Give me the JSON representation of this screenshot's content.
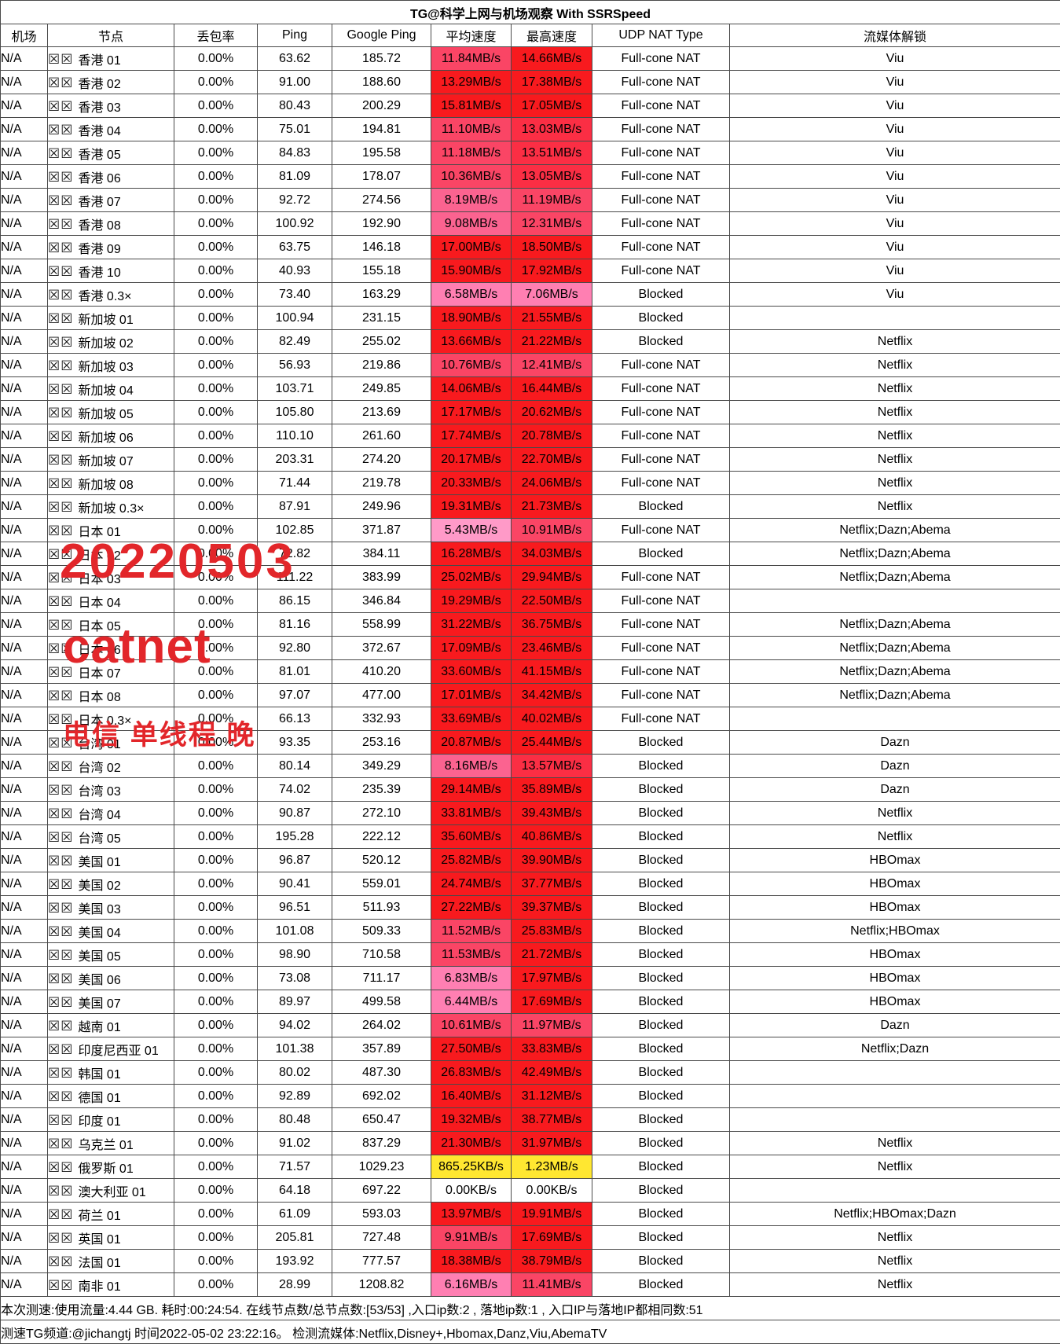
{
  "title": "TG@科学上网与机场观察 With SSRSpeed",
  "watermark": {
    "color": "#e2262a",
    "date": "20220503",
    "name": "catnet",
    "note": "电信 单线程 晚"
  },
  "footer": {
    "line1": "本次测速:使用流量:4.44 GB. 耗时:00:24:54. 在线节点数/总节点数:[53/53] ,入口ip数:2 , 落地ip数:1 , 入口IP与落地IP都相同数:51",
    "line2": "测速TG频道:@jichangtj 时间2022-05-02 23:22:16。 检测流媒体:Netflix,Disney+,Hbomax,Danz,Viu,AbemaTV"
  },
  "legend_colors": {
    "red": "#f81a1e",
    "high_mid_red": "#fb2e44",
    "mid_red": "#fa4565",
    "deep_pink": "#fb6390",
    "pink": "#ff7fb2",
    "light_pink": "#ff9ac8",
    "yellow": "#ffe731",
    "white": "#ffffff"
  },
  "table": {
    "flag_placeholder": "☒☒",
    "columns": [
      {
        "key": "airport",
        "label": "机场"
      },
      {
        "key": "node",
        "label": "节点"
      },
      {
        "key": "loss",
        "label": "丢包率"
      },
      {
        "key": "ping",
        "label": "Ping"
      },
      {
        "key": "gping",
        "label": "Google Ping"
      },
      {
        "key": "avg",
        "label": "平均速度"
      },
      {
        "key": "max",
        "label": "最高速度"
      },
      {
        "key": "udp",
        "label": "UDP NAT Type"
      },
      {
        "key": "stream",
        "label": "流媒体解锁"
      }
    ],
    "rows": [
      {
        "airport": "N/A",
        "node": "香港 01",
        "loss": "0.00%",
        "ping": "63.62",
        "gping": "185.72",
        "avg": "11.84MB/s",
        "ac": "#fa4565",
        "max": "14.66MB/s",
        "mc": "#f81a1e",
        "udp": "Full-cone NAT",
        "stream": "Viu"
      },
      {
        "airport": "N/A",
        "node": "香港 02",
        "loss": "0.00%",
        "ping": "91.00",
        "gping": "188.60",
        "avg": "13.29MB/s",
        "ac": "#f81a1e",
        "max": "17.38MB/s",
        "mc": "#f81a1e",
        "udp": "Full-cone NAT",
        "stream": "Viu"
      },
      {
        "airport": "N/A",
        "node": "香港 03",
        "loss": "0.00%",
        "ping": "80.43",
        "gping": "200.29",
        "avg": "15.81MB/s",
        "ac": "#f81a1e",
        "max": "17.05MB/s",
        "mc": "#f81a1e",
        "udp": "Full-cone NAT",
        "stream": "Viu"
      },
      {
        "airport": "N/A",
        "node": "香港 04",
        "loss": "0.00%",
        "ping": "75.01",
        "gping": "194.81",
        "avg": "11.10MB/s",
        "ac": "#fa4565",
        "max": "13.03MB/s",
        "mc": "#fb2e44",
        "udp": "Full-cone NAT",
        "stream": "Viu"
      },
      {
        "airport": "N/A",
        "node": "香港 05",
        "loss": "0.00%",
        "ping": "84.83",
        "gping": "195.58",
        "avg": "11.18MB/s",
        "ac": "#fa4565",
        "max": "13.51MB/s",
        "mc": "#fb2e44",
        "udp": "Full-cone NAT",
        "stream": "Viu"
      },
      {
        "airport": "N/A",
        "node": "香港 06",
        "loss": "0.00%",
        "ping": "81.09",
        "gping": "178.07",
        "avg": "10.36MB/s",
        "ac": "#fa4565",
        "max": "13.05MB/s",
        "mc": "#fb2e44",
        "udp": "Full-cone NAT",
        "stream": "Viu"
      },
      {
        "airport": "N/A",
        "node": "香港 07",
        "loss": "0.00%",
        "ping": "92.72",
        "gping": "274.56",
        "avg": "8.19MB/s",
        "ac": "#fb6390",
        "max": "11.19MB/s",
        "mc": "#fa4565",
        "udp": "Full-cone NAT",
        "stream": "Viu"
      },
      {
        "airport": "N/A",
        "node": "香港 08",
        "loss": "0.00%",
        "ping": "100.92",
        "gping": "192.90",
        "avg": "9.08MB/s",
        "ac": "#fb6390",
        "max": "12.31MB/s",
        "mc": "#fa4565",
        "udp": "Full-cone NAT",
        "stream": "Viu"
      },
      {
        "airport": "N/A",
        "node": "香港 09",
        "loss": "0.00%",
        "ping": "63.75",
        "gping": "146.18",
        "avg": "17.00MB/s",
        "ac": "#f81a1e",
        "max": "18.50MB/s",
        "mc": "#f81a1e",
        "udp": "Full-cone NAT",
        "stream": "Viu"
      },
      {
        "airport": "N/A",
        "node": "香港 10",
        "loss": "0.00%",
        "ping": "40.93",
        "gping": "155.18",
        "avg": "15.90MB/s",
        "ac": "#f81a1e",
        "max": "17.92MB/s",
        "mc": "#f81a1e",
        "udp": "Full-cone NAT",
        "stream": "Viu"
      },
      {
        "airport": "N/A",
        "node": "香港 0.3×",
        "loss": "0.00%",
        "ping": "73.40",
        "gping": "163.29",
        "avg": "6.58MB/s",
        "ac": "#ff7fb2",
        "max": "7.06MB/s",
        "mc": "#ff7fb2",
        "udp": "Blocked",
        "stream": "Viu"
      },
      {
        "airport": "N/A",
        "node": "新加坡 01",
        "loss": "0.00%",
        "ping": "100.94",
        "gping": "231.15",
        "avg": "18.90MB/s",
        "ac": "#f81a1e",
        "max": "21.55MB/s",
        "mc": "#f81a1e",
        "udp": "Blocked",
        "stream": ""
      },
      {
        "airport": "N/A",
        "node": "新加坡 02",
        "loss": "0.00%",
        "ping": "82.49",
        "gping": "255.02",
        "avg": "13.66MB/s",
        "ac": "#f81a1e",
        "max": "21.22MB/s",
        "mc": "#f81a1e",
        "udp": "Blocked",
        "stream": "Netflix"
      },
      {
        "airport": "N/A",
        "node": "新加坡 03",
        "loss": "0.00%",
        "ping": "56.93",
        "gping": "219.86",
        "avg": "10.76MB/s",
        "ac": "#fa4565",
        "max": "12.41MB/s",
        "mc": "#fa4565",
        "udp": "Full-cone NAT",
        "stream": "Netflix"
      },
      {
        "airport": "N/A",
        "node": "新加坡 04",
        "loss": "0.00%",
        "ping": "103.71",
        "gping": "249.85",
        "avg": "14.06MB/s",
        "ac": "#f81a1e",
        "max": "16.44MB/s",
        "mc": "#f81a1e",
        "udp": "Full-cone NAT",
        "stream": "Netflix"
      },
      {
        "airport": "N/A",
        "node": "新加坡 05",
        "loss": "0.00%",
        "ping": "105.80",
        "gping": "213.69",
        "avg": "17.17MB/s",
        "ac": "#f81a1e",
        "max": "20.62MB/s",
        "mc": "#f81a1e",
        "udp": "Full-cone NAT",
        "stream": "Netflix"
      },
      {
        "airport": "N/A",
        "node": "新加坡 06",
        "loss": "0.00%",
        "ping": "110.10",
        "gping": "261.60",
        "avg": "17.74MB/s",
        "ac": "#f81a1e",
        "max": "20.78MB/s",
        "mc": "#f81a1e",
        "udp": "Full-cone NAT",
        "stream": "Netflix"
      },
      {
        "airport": "N/A",
        "node": "新加坡 07",
        "loss": "0.00%",
        "ping": "203.31",
        "gping": "274.20",
        "avg": "20.17MB/s",
        "ac": "#f81a1e",
        "max": "22.70MB/s",
        "mc": "#f81a1e",
        "udp": "Full-cone NAT",
        "stream": "Netflix"
      },
      {
        "airport": "N/A",
        "node": "新加坡 08",
        "loss": "0.00%",
        "ping": "71.44",
        "gping": "219.78",
        "avg": "20.33MB/s",
        "ac": "#f81a1e",
        "max": "24.06MB/s",
        "mc": "#f81a1e",
        "udp": "Full-cone NAT",
        "stream": "Netflix"
      },
      {
        "airport": "N/A",
        "node": "新加坡 0.3×",
        "loss": "0.00%",
        "ping": "87.91",
        "gping": "249.96",
        "avg": "19.31MB/s",
        "ac": "#f81a1e",
        "max": "21.73MB/s",
        "mc": "#f81a1e",
        "udp": "Blocked",
        "stream": "Netflix"
      },
      {
        "airport": "N/A",
        "node": "日本 01",
        "loss": "0.00%",
        "ping": "102.85",
        "gping": "371.87",
        "avg": "5.43MB/s",
        "ac": "#ff9ac8",
        "max": "10.91MB/s",
        "mc": "#fa4565",
        "udp": "Full-cone NAT",
        "stream": "Netflix;Dazn;Abema"
      },
      {
        "airport": "N/A",
        "node": "日本 02",
        "loss": "0.00%",
        "ping": "72.82",
        "gping": "384.11",
        "avg": "16.28MB/s",
        "ac": "#f81a1e",
        "max": "34.03MB/s",
        "mc": "#f81a1e",
        "udp": "Blocked",
        "stream": "Netflix;Dazn;Abema"
      },
      {
        "airport": "N/A",
        "node": "日本 03",
        "loss": "0.00%",
        "ping": "111.22",
        "gping": "383.99",
        "avg": "25.02MB/s",
        "ac": "#f81a1e",
        "max": "29.94MB/s",
        "mc": "#f81a1e",
        "udp": "Full-cone NAT",
        "stream": "Netflix;Dazn;Abema"
      },
      {
        "airport": "N/A",
        "node": "日本 04",
        "loss": "0.00%",
        "ping": "86.15",
        "gping": "346.84",
        "avg": "19.29MB/s",
        "ac": "#f81a1e",
        "max": "22.50MB/s",
        "mc": "#f81a1e",
        "udp": "Full-cone NAT",
        "stream": ""
      },
      {
        "airport": "N/A",
        "node": "日本 05",
        "loss": "0.00%",
        "ping": "81.16",
        "gping": "558.99",
        "avg": "31.22MB/s",
        "ac": "#f81a1e",
        "max": "36.75MB/s",
        "mc": "#f81a1e",
        "udp": "Full-cone NAT",
        "stream": "Netflix;Dazn;Abema"
      },
      {
        "airport": "N/A",
        "node": "日本 06",
        "loss": "0.00%",
        "ping": "92.80",
        "gping": "372.67",
        "avg": "17.09MB/s",
        "ac": "#f81a1e",
        "max": "23.46MB/s",
        "mc": "#f81a1e",
        "udp": "Full-cone NAT",
        "stream": "Netflix;Dazn;Abema"
      },
      {
        "airport": "N/A",
        "node": "日本 07",
        "loss": "0.00%",
        "ping": "81.01",
        "gping": "410.20",
        "avg": "33.60MB/s",
        "ac": "#f81a1e",
        "max": "41.15MB/s",
        "mc": "#f81a1e",
        "udp": "Full-cone NAT",
        "stream": "Netflix;Dazn;Abema"
      },
      {
        "airport": "N/A",
        "node": "日本 08",
        "loss": "0.00%",
        "ping": "97.07",
        "gping": "477.00",
        "avg": "17.01MB/s",
        "ac": "#f81a1e",
        "max": "34.42MB/s",
        "mc": "#f81a1e",
        "udp": "Full-cone NAT",
        "stream": "Netflix;Dazn;Abema"
      },
      {
        "airport": "N/A",
        "node": "日本 0.3×",
        "loss": "0.00%",
        "ping": "66.13",
        "gping": "332.93",
        "avg": "33.69MB/s",
        "ac": "#f81a1e",
        "max": "40.02MB/s",
        "mc": "#f81a1e",
        "udp": "Full-cone NAT",
        "stream": ""
      },
      {
        "airport": "N/A",
        "node": "台湾 01",
        "loss": "0.00%",
        "ping": "93.35",
        "gping": "253.16",
        "avg": "20.87MB/s",
        "ac": "#f81a1e",
        "max": "25.44MB/s",
        "mc": "#f81a1e",
        "udp": "Blocked",
        "stream": "Dazn"
      },
      {
        "airport": "N/A",
        "node": "台湾 02",
        "loss": "0.00%",
        "ping": "80.14",
        "gping": "349.29",
        "avg": "8.16MB/s",
        "ac": "#fb6390",
        "max": "13.57MB/s",
        "mc": "#fb2e44",
        "udp": "Blocked",
        "stream": "Dazn"
      },
      {
        "airport": "N/A",
        "node": "台湾 03",
        "loss": "0.00%",
        "ping": "74.02",
        "gping": "235.39",
        "avg": "29.14MB/s",
        "ac": "#f81a1e",
        "max": "35.89MB/s",
        "mc": "#f81a1e",
        "udp": "Blocked",
        "stream": "Dazn"
      },
      {
        "airport": "N/A",
        "node": "台湾 04",
        "loss": "0.00%",
        "ping": "90.87",
        "gping": "272.10",
        "avg": "33.81MB/s",
        "ac": "#f81a1e",
        "max": "39.43MB/s",
        "mc": "#f81a1e",
        "udp": "Blocked",
        "stream": "Netflix"
      },
      {
        "airport": "N/A",
        "node": "台湾 05",
        "loss": "0.00%",
        "ping": "195.28",
        "gping": "222.12",
        "avg": "35.60MB/s",
        "ac": "#f81a1e",
        "max": "40.86MB/s",
        "mc": "#f81a1e",
        "udp": "Blocked",
        "stream": "Netflix"
      },
      {
        "airport": "N/A",
        "node": "美国 01",
        "loss": "0.00%",
        "ping": "96.87",
        "gping": "520.12",
        "avg": "25.82MB/s",
        "ac": "#f81a1e",
        "max": "39.90MB/s",
        "mc": "#f81a1e",
        "udp": "Blocked",
        "stream": "HBOmax"
      },
      {
        "airport": "N/A",
        "node": "美国 02",
        "loss": "0.00%",
        "ping": "90.41",
        "gping": "559.01",
        "avg": "24.74MB/s",
        "ac": "#f81a1e",
        "max": "37.77MB/s",
        "mc": "#f81a1e",
        "udp": "Blocked",
        "stream": "HBOmax"
      },
      {
        "airport": "N/A",
        "node": "美国 03",
        "loss": "0.00%",
        "ping": "96.51",
        "gping": "511.93",
        "avg": "27.22MB/s",
        "ac": "#f81a1e",
        "max": "39.37MB/s",
        "mc": "#f81a1e",
        "udp": "Blocked",
        "stream": "HBOmax"
      },
      {
        "airport": "N/A",
        "node": "美国 04",
        "loss": "0.00%",
        "ping": "101.08",
        "gping": "509.33",
        "avg": "11.52MB/s",
        "ac": "#fa4565",
        "max": "25.83MB/s",
        "mc": "#f81a1e",
        "udp": "Blocked",
        "stream": "Netflix;HBOmax"
      },
      {
        "airport": "N/A",
        "node": "美国 05",
        "loss": "0.00%",
        "ping": "98.90",
        "gping": "710.58",
        "avg": "11.53MB/s",
        "ac": "#fa4565",
        "max": "21.72MB/s",
        "mc": "#f81a1e",
        "udp": "Blocked",
        "stream": "HBOmax"
      },
      {
        "airport": "N/A",
        "node": "美国 06",
        "loss": "0.00%",
        "ping": "73.08",
        "gping": "711.17",
        "avg": "6.83MB/s",
        "ac": "#ff7fb2",
        "max": "17.97MB/s",
        "mc": "#f81a1e",
        "udp": "Blocked",
        "stream": "HBOmax"
      },
      {
        "airport": "N/A",
        "node": "美国 07",
        "loss": "0.00%",
        "ping": "89.97",
        "gping": "499.58",
        "avg": "6.44MB/s",
        "ac": "#ff7fb2",
        "max": "17.69MB/s",
        "mc": "#f81a1e",
        "udp": "Blocked",
        "stream": "HBOmax"
      },
      {
        "airport": "N/A",
        "node": "越南 01",
        "loss": "0.00%",
        "ping": "94.02",
        "gping": "264.02",
        "avg": "10.61MB/s",
        "ac": "#fa4565",
        "max": "11.97MB/s",
        "mc": "#fa4565",
        "udp": "Blocked",
        "stream": "Dazn"
      },
      {
        "airport": "N/A",
        "node": "印度尼西亚 01",
        "loss": "0.00%",
        "ping": "101.38",
        "gping": "357.89",
        "avg": "27.50MB/s",
        "ac": "#f81a1e",
        "max": "33.83MB/s",
        "mc": "#f81a1e",
        "udp": "Blocked",
        "stream": "Netflix;Dazn"
      },
      {
        "airport": "N/A",
        "node": "韩国 01",
        "loss": "0.00%",
        "ping": "80.02",
        "gping": "487.30",
        "avg": "26.83MB/s",
        "ac": "#f81a1e",
        "max": "42.49MB/s",
        "mc": "#f81a1e",
        "udp": "Blocked",
        "stream": ""
      },
      {
        "airport": "N/A",
        "node": "德国 01",
        "loss": "0.00%",
        "ping": "92.89",
        "gping": "692.02",
        "avg": "16.40MB/s",
        "ac": "#f81a1e",
        "max": "31.12MB/s",
        "mc": "#f81a1e",
        "udp": "Blocked",
        "stream": ""
      },
      {
        "airport": "N/A",
        "node": "印度 01",
        "loss": "0.00%",
        "ping": "80.48",
        "gping": "650.47",
        "avg": "19.32MB/s",
        "ac": "#f81a1e",
        "max": "38.77MB/s",
        "mc": "#f81a1e",
        "udp": "Blocked",
        "stream": ""
      },
      {
        "airport": "N/A",
        "node": "乌克兰 01",
        "loss": "0.00%",
        "ping": "91.02",
        "gping": "837.29",
        "avg": "21.30MB/s",
        "ac": "#f81a1e",
        "max": "31.97MB/s",
        "mc": "#f81a1e",
        "udp": "Blocked",
        "stream": "Netflix"
      },
      {
        "airport": "N/A",
        "node": "俄罗斯 01",
        "loss": "0.00%",
        "ping": "71.57",
        "gping": "1029.23",
        "avg": "865.25KB/s",
        "ac": "#ffe731",
        "max": "1.23MB/s",
        "mc": "#ffe731",
        "udp": "Blocked",
        "stream": "Netflix"
      },
      {
        "airport": "N/A",
        "node": "澳大利亚 01",
        "loss": "0.00%",
        "ping": "64.18",
        "gping": "697.22",
        "avg": "0.00KB/s",
        "ac": "#ffffff",
        "max": "0.00KB/s",
        "mc": "#ffffff",
        "udp": "Blocked",
        "stream": ""
      },
      {
        "airport": "N/A",
        "node": "荷兰 01",
        "loss": "0.00%",
        "ping": "61.09",
        "gping": "593.03",
        "avg": "13.97MB/s",
        "ac": "#f81a1e",
        "max": "19.91MB/s",
        "mc": "#f81a1e",
        "udp": "Blocked",
        "stream": "Netflix;HBOmax;Dazn"
      },
      {
        "airport": "N/A",
        "node": "英国 01",
        "loss": "0.00%",
        "ping": "205.81",
        "gping": "727.48",
        "avg": "9.91MB/s",
        "ac": "#fa4565",
        "max": "17.69MB/s",
        "mc": "#f81a1e",
        "udp": "Blocked",
        "stream": "Netflix"
      },
      {
        "airport": "N/A",
        "node": "法国 01",
        "loss": "0.00%",
        "ping": "193.92",
        "gping": "777.57",
        "avg": "18.38MB/s",
        "ac": "#f81a1e",
        "max": "38.79MB/s",
        "mc": "#f81a1e",
        "udp": "Blocked",
        "stream": "Netflix"
      },
      {
        "airport": "N/A",
        "node": "南非 01",
        "loss": "0.00%",
        "ping": "28.99",
        "gping": "1208.82",
        "avg": "6.16MB/s",
        "ac": "#ff7fb2",
        "max": "11.41MB/s",
        "mc": "#fa4565",
        "udp": "Blocked",
        "stream": "Netflix"
      }
    ]
  }
}
